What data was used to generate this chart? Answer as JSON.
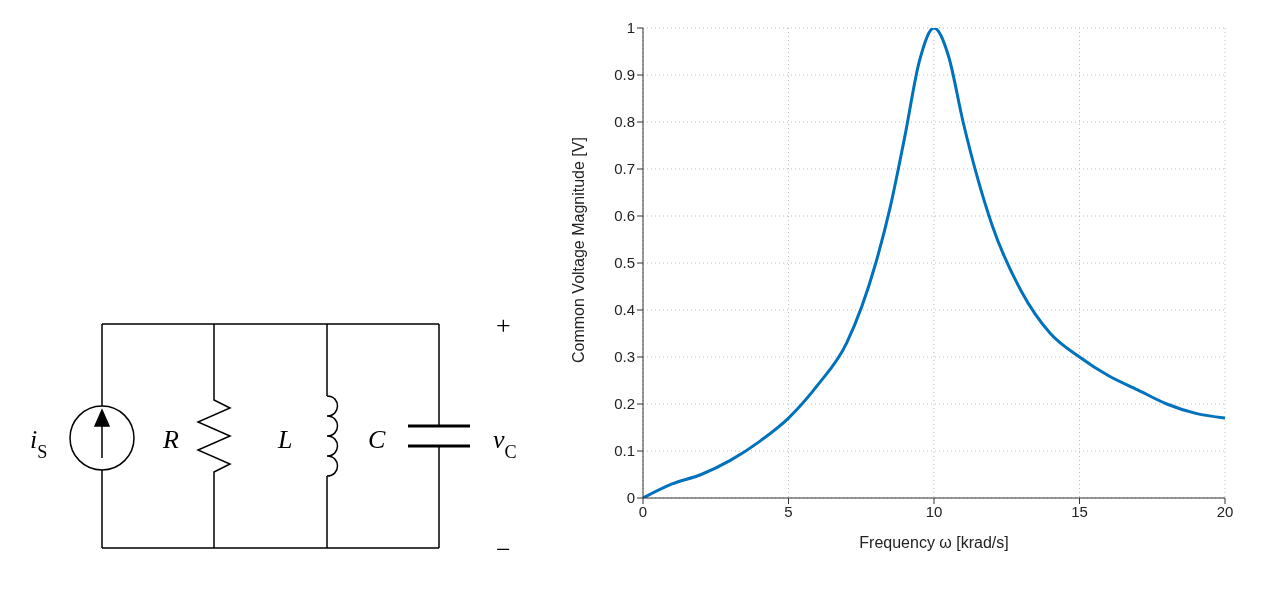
{
  "chart_data": {
    "type": "line",
    "xlabel": "Frequency ω [krad/s]",
    "ylabel": "Common Voltage Magnitude [V]",
    "x": [
      0,
      1,
      2,
      3,
      4,
      5,
      6,
      7,
      8,
      8.5,
      9,
      9.5,
      10,
      10.5,
      11,
      11.5,
      12,
      13,
      14,
      15,
      16,
      17,
      18,
      19,
      20
    ],
    "series": [
      {
        "color": "#0072bd",
        "values": [
          0,
          0.03,
          0.05,
          0.08,
          0.12,
          0.17,
          0.24,
          0.33,
          0.5,
          0.62,
          0.77,
          0.93,
          1,
          0.94,
          0.8,
          0.68,
          0.58,
          0.44,
          0.35,
          0.3,
          0.26,
          0.23,
          0.2,
          0.18,
          0.17
        ]
      }
    ],
    "xlim": [
      0,
      20
    ],
    "xticks": [
      0,
      5,
      10,
      15,
      20
    ],
    "ylim": [
      0,
      1
    ],
    "yticks": [
      0,
      0.1,
      0.2,
      0.3,
      0.4,
      0.5,
      0.6,
      0.7,
      0.8,
      0.9,
      1
    ],
    "grid": true,
    "annotations": [
      "i$_{S}$",
      "R",
      "L",
      "C",
      "v$_{C}$",
      "+",
      "−"
    ]
  }
}
